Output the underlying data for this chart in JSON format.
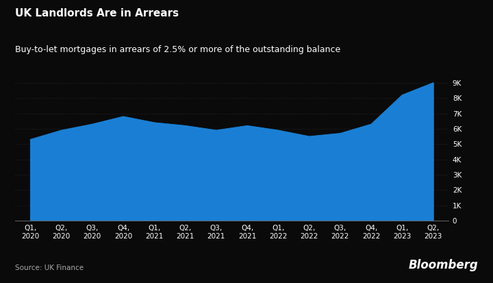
{
  "title": "UK Landlords Are in Arrears",
  "subtitle": "Buy-to-let mortgages in arrears of 2.5% or more of the outstanding balance",
  "source": "Source: UK Finance",
  "watermark": "Bloomberg",
  "background_color": "#0a0a0a",
  "text_color": "#ffffff",
  "fill_color": "#1a7fd4",
  "line_color": "#1a7fd4",
  "x_labels": [
    "Q1,\n2020",
    "Q2,\n2020",
    "Q3,\n2020",
    "Q4,\n2020",
    "Q1,\n2021",
    "Q2,\n2021",
    "Q3,\n2021",
    "Q4,\n2021",
    "Q1,\n2022",
    "Q2,\n2022",
    "Q3,\n2022",
    "Q4,\n2022",
    "Q1,\n2023",
    "Q2,\n2023"
  ],
  "values": [
    5300,
    5900,
    6300,
    6800,
    6400,
    6200,
    5900,
    6200,
    5900,
    5500,
    5700,
    6300,
    8200,
    9000
  ],
  "ylim": [
    0,
    9600
  ],
  "yticks": [
    0,
    1000,
    2000,
    3000,
    4000,
    5000,
    6000,
    7000,
    8000,
    9000
  ],
  "ytick_labels": [
    "0",
    "1K",
    "2K",
    "3K",
    "4K",
    "5K",
    "6K",
    "7K",
    "8K",
    "9K"
  ],
  "grid_color": "#444444",
  "title_fontsize": 11,
  "subtitle_fontsize": 9,
  "tick_fontsize": 7.5,
  "source_fontsize": 7.5,
  "watermark_fontsize": 12
}
